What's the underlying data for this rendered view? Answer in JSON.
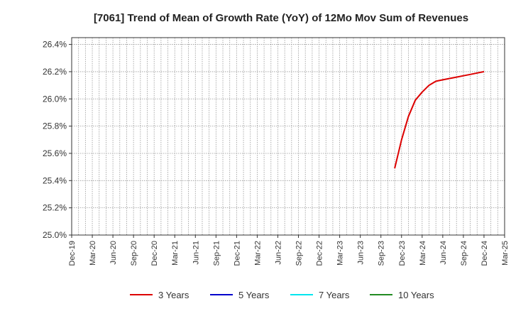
{
  "chart_data": {
    "type": "line",
    "title": "[7061]  Trend of Mean of Growth Rate (YoY) of 12Mo Mov Sum of Revenues",
    "xlabel": "",
    "ylabel": "",
    "y_unit_suffix": "%",
    "ylim": [
      25.0,
      26.45
    ],
    "yticks": [
      25.0,
      25.2,
      25.4,
      25.6,
      25.8,
      26.0,
      26.2,
      26.4
    ],
    "ytick_labels": [
      "25.0%",
      "25.2%",
      "25.4%",
      "25.6%",
      "25.8%",
      "26.0%",
      "26.2%",
      "26.4%"
    ],
    "xlim": [
      "2019-12",
      "2025-03"
    ],
    "xtick_labels": [
      "Dec-19",
      "Mar-20",
      "Jun-20",
      "Sep-20",
      "Dec-20",
      "Mar-21",
      "Jun-21",
      "Sep-21",
      "Dec-21",
      "Mar-22",
      "Jun-22",
      "Sep-22",
      "Dec-22",
      "Mar-23",
      "Jun-23",
      "Sep-23",
      "Dec-23",
      "Mar-24",
      "Jun-24",
      "Sep-24",
      "Dec-24",
      "Mar-25"
    ],
    "grid": true,
    "legend_position": "bottom",
    "series": [
      {
        "name": "3 Years",
        "color": "#dd0000",
        "points": [
          {
            "x": "2023-11",
            "y": 25.49
          },
          {
            "x": "2023-12",
            "y": 25.7
          },
          {
            "x": "2024-01",
            "y": 25.87
          },
          {
            "x": "2024-02",
            "y": 25.99
          },
          {
            "x": "2024-03",
            "y": 26.05
          },
          {
            "x": "2024-04",
            "y": 26.1
          },
          {
            "x": "2024-05",
            "y": 26.13
          },
          {
            "x": "2024-06",
            "y": 26.14
          },
          {
            "x": "2024-07",
            "y": 26.15
          },
          {
            "x": "2024-08",
            "y": 26.16
          },
          {
            "x": "2024-09",
            "y": 26.17
          },
          {
            "x": "2024-10",
            "y": 26.18
          },
          {
            "x": "2024-11",
            "y": 26.19
          },
          {
            "x": "2024-12",
            "y": 26.2
          }
        ]
      },
      {
        "name": "5 Years",
        "color": "#0000cc",
        "points": []
      },
      {
        "name": "7 Years",
        "color": "#00e5ee",
        "points": []
      },
      {
        "name": "10 Years",
        "color": "#228b22",
        "points": []
      }
    ]
  }
}
